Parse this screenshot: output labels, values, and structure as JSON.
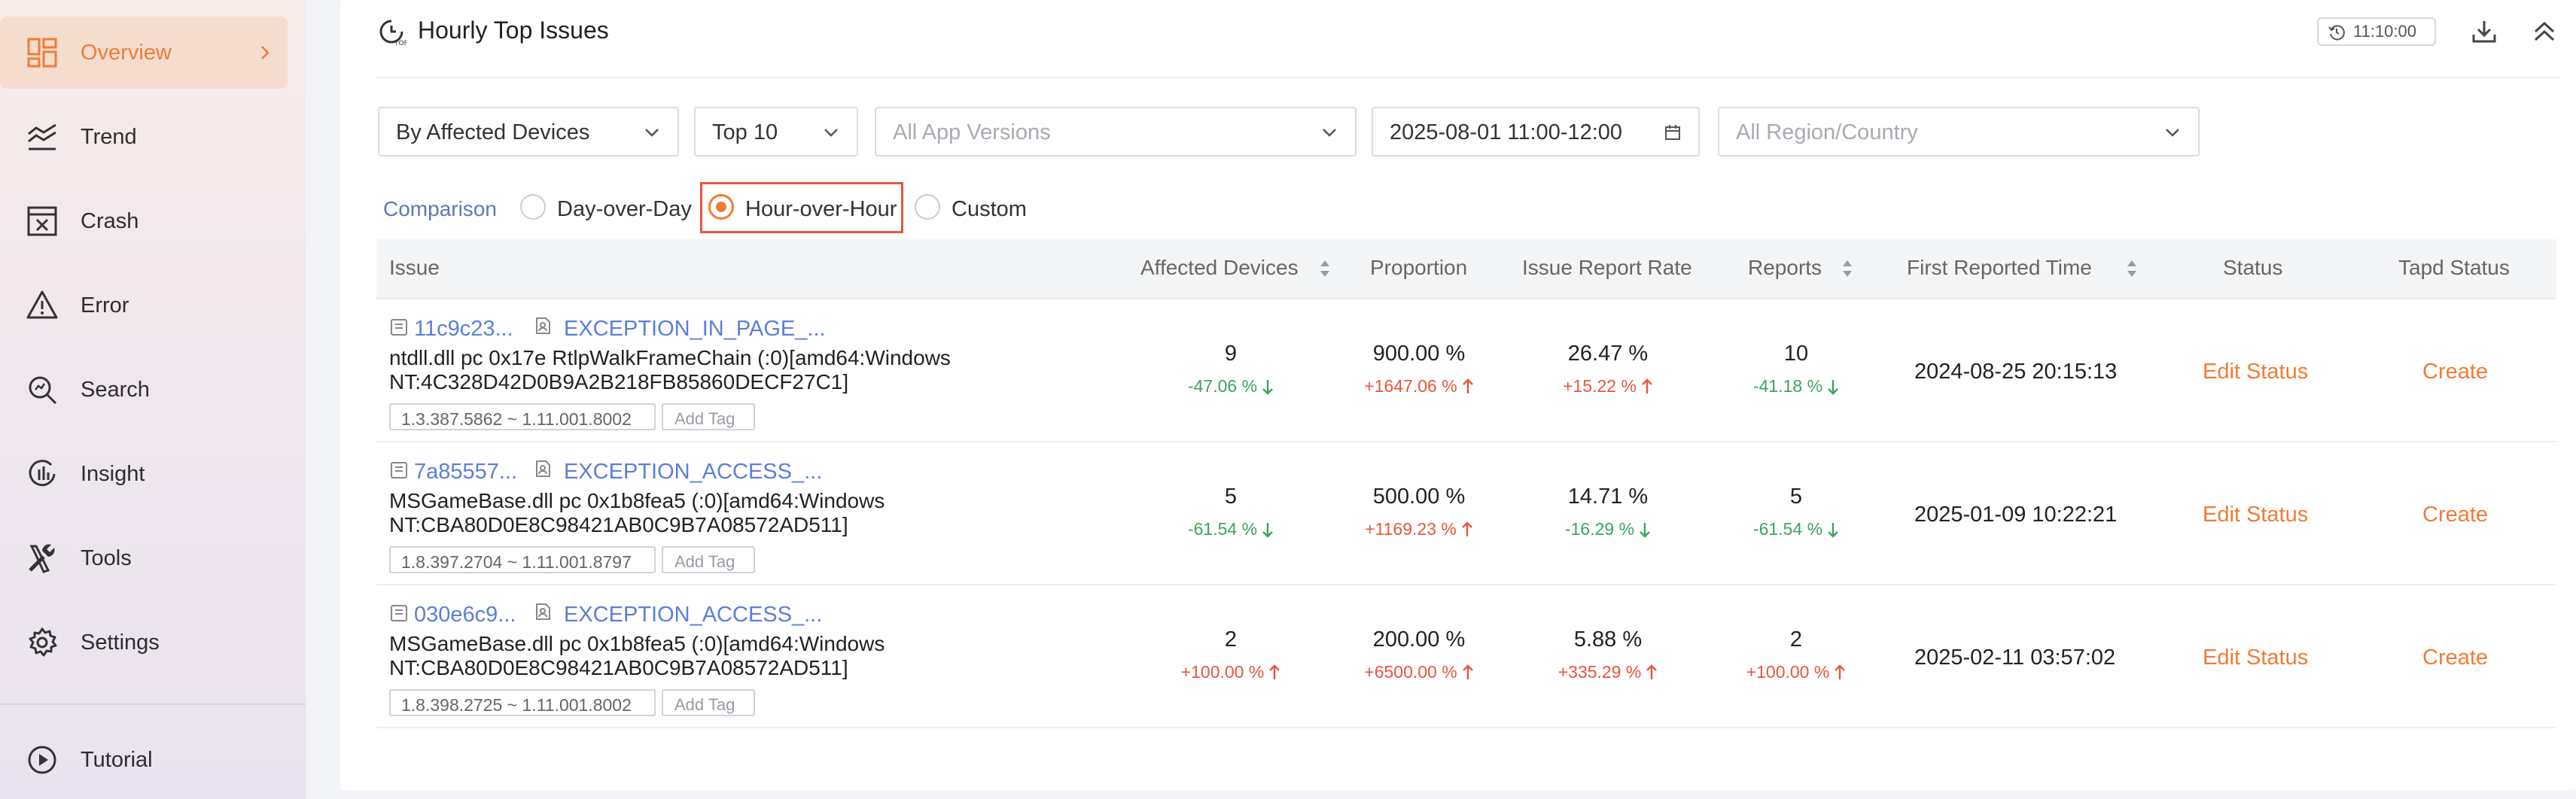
{
  "sidebar": {
    "items": [
      {
        "label": "Overview",
        "icon": "overview-icon"
      },
      {
        "label": "Trend",
        "icon": "trend-icon"
      },
      {
        "label": "Crash",
        "icon": "crash-icon"
      },
      {
        "label": "Error",
        "icon": "error-icon"
      },
      {
        "label": "Search",
        "icon": "search-icon"
      },
      {
        "label": "Insight",
        "icon": "insight-icon"
      },
      {
        "label": "Tools",
        "icon": "tools-icon"
      },
      {
        "label": "Settings",
        "icon": "settings-icon"
      }
    ],
    "tutorial": "Tutorial"
  },
  "header": {
    "title": "Hourly Top Issues",
    "time": "11:10:00"
  },
  "filters": {
    "metric": "By Affected Devices",
    "top": "Top 10",
    "app_versions_placeholder": "All App Versions",
    "date_range": "2025-08-01 11:00-12:00",
    "region_placeholder": "All Region/Country"
  },
  "comparison": {
    "label": "Comparison",
    "options": [
      "Day-over-Day",
      "Hour-over-Hour",
      "Custom"
    ],
    "selected": "Hour-over-Hour"
  },
  "table": {
    "columns": [
      "Issue",
      "Affected Devices",
      "Proportion",
      "Issue Report Rate",
      "Reports",
      "First Reported Time",
      "Status",
      "Tapd Status"
    ],
    "rows": [
      {
        "id": "11c9c23...",
        "exception": "EXCEPTION_IN_PAGE_...",
        "desc": "ntdll.dll pc 0x17e RtlpWalkFrameChain (:0)[amd64:Windows NT:4C328D42D0B9A2B218FB85860DECF27C1]",
        "version": "1.3.387.5862 ~ 1.11.001.8002",
        "add_tag": "Add Tag",
        "devices": "9",
        "devices_chg": "-47.06 %",
        "devices_dir": "down",
        "proportion": "900.00 %",
        "proportion_chg": "+1647.06 %",
        "proportion_dir": "up",
        "rate": "26.47 %",
        "rate_chg": "+15.22 %",
        "rate_dir": "up",
        "reports": "10",
        "reports_chg": "-41.18 %",
        "reports_dir": "down",
        "first_time": "2024-08-25 20:15:13",
        "status": "Edit Status",
        "tapd": "Create"
      },
      {
        "id": "7a85557...",
        "exception": "EXCEPTION_ACCESS_...",
        "desc": "MSGameBase.dll pc 0x1b8fea5 (:0)[amd64:Windows NT:CBA80D0E8C98421AB0C9B7A08572AD511]",
        "version": "1.8.397.2704 ~ 1.11.001.8797",
        "add_tag": "Add Tag",
        "devices": "5",
        "devices_chg": "-61.54 %",
        "devices_dir": "down",
        "proportion": "500.00 %",
        "proportion_chg": "+1169.23 %",
        "proportion_dir": "up",
        "rate": "14.71 %",
        "rate_chg": "-16.29 %",
        "rate_dir": "down",
        "reports": "5",
        "reports_chg": "-61.54 %",
        "reports_dir": "down",
        "first_time": "2025-01-09 10:22:21",
        "status": "Edit Status",
        "tapd": "Create"
      },
      {
        "id": "030e6c9...",
        "exception": "EXCEPTION_ACCESS_...",
        "desc": "MSGameBase.dll pc 0x1b8fea5 (:0)[amd64:Windows NT:CBA80D0E8C98421AB0C9B7A08572AD511]",
        "version": "1.8.398.2725 ~ 1.11.001.8002",
        "add_tag": "Add Tag",
        "devices": "2",
        "devices_chg": "+100.00 %",
        "devices_dir": "up",
        "proportion": "200.00 %",
        "proportion_chg": "+6500.00 %",
        "proportion_dir": "up",
        "rate": "5.88 %",
        "rate_chg": "+335.29 %",
        "rate_dir": "up",
        "reports": "2",
        "reports_chg": "+100.00 %",
        "reports_dir": "up",
        "first_time": "2025-02-11 03:57:02",
        "status": "Edit Status",
        "tapd": "Create"
      }
    ]
  },
  "colors": {
    "accent": "#f07c35",
    "link": "#5b7fd8",
    "down": "#3aa55b",
    "up": "#e8553d"
  }
}
